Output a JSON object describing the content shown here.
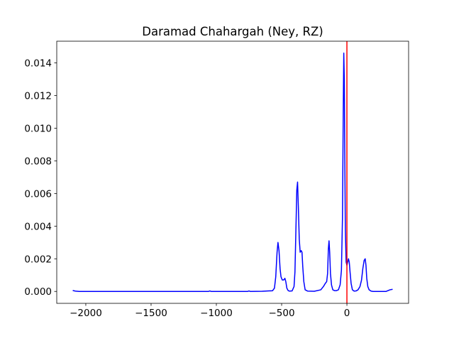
{
  "chart_data": {
    "type": "line",
    "title": "Daramad Chahargah (Ney, RZ)",
    "x": [
      -2100,
      -2080,
      -2050,
      -1500,
      -1060,
      -1050,
      -1040,
      -760,
      -750,
      -740,
      -650,
      -600,
      -570,
      -555,
      -545,
      -535,
      -528,
      -520,
      -512,
      -505,
      -495,
      -485,
      -475,
      -468,
      -460,
      -450,
      -440,
      -420,
      -405,
      -398,
      -390,
      -384,
      -378,
      -372,
      -365,
      -358,
      -350,
      -344,
      -338,
      -330,
      -320,
      -300,
      -250,
      -200,
      -180,
      -165,
      -155,
      -148,
      -142,
      -137,
      -132,
      -126,
      -118,
      -108,
      -95,
      -80,
      -65,
      -52,
      -42,
      -34,
      -28,
      -24,
      -20,
      -16,
      -12,
      -6,
      0,
      6,
      12,
      18,
      24,
      32,
      42,
      55,
      70,
      85,
      100,
      112,
      122,
      132,
      140,
      146,
      152,
      160,
      170,
      185,
      200,
      250,
      300,
      330,
      350
    ],
    "values": [
      6e-05,
      2e-05,
      0.0,
      0.0,
      0.0,
      3e-05,
      0.0,
      0.0,
      3e-05,
      0.0,
      1e-05,
      3e-05,
      4e-05,
      0.0002,
      0.0009,
      0.0024,
      0.003,
      0.0025,
      0.0014,
      0.0009,
      0.0007,
      0.0007,
      0.0008,
      0.0006,
      0.0002,
      5e-05,
      2e-05,
      3e-05,
      0.0003,
      0.0012,
      0.004,
      0.0062,
      0.0067,
      0.0052,
      0.0032,
      0.0024,
      0.0025,
      0.0024,
      0.0015,
      0.0006,
      0.0001,
      2e-05,
      1e-05,
      0.0001,
      0.0003,
      0.0005,
      0.0006,
      0.0011,
      0.0026,
      0.0031,
      0.0024,
      0.0011,
      0.0004,
      0.0001,
      5e-05,
      5e-05,
      0.0001,
      0.0004,
      0.0013,
      0.0045,
      0.011,
      0.0146,
      0.013,
      0.008,
      0.0038,
      0.0018,
      0.0016,
      0.0018,
      0.002,
      0.0018,
      0.0012,
      0.0005,
      0.0001,
      2e-05,
      3e-05,
      0.0001,
      0.0003,
      0.0007,
      0.0014,
      0.0019,
      0.002,
      0.0016,
      0.0008,
      0.0003,
      0.0001,
      2e-05,
      0.0,
      0.0,
      0.0,
      0.0001,
      0.00013
    ],
    "color": "#0000ff",
    "vline": {
      "x": 0,
      "color": "#ff0000"
    },
    "xlim": [
      -2222.5,
      472.5
    ],
    "ylim": [
      -0.00073,
      0.01533
    ],
    "xticks": [
      {
        "value": -2000,
        "label": "−2000"
      },
      {
        "value": -1500,
        "label": "−1500"
      },
      {
        "value": -1000,
        "label": "−1000"
      },
      {
        "value": -500,
        "label": "−500"
      },
      0
    ],
    "yticks": [
      {
        "value": 0,
        "label": "0.000"
      },
      {
        "value": 0.002,
        "label": "0.002"
      },
      {
        "value": 0.004,
        "label": "0.004"
      },
      {
        "value": 0.006,
        "label": "0.006"
      },
      {
        "value": 0.008,
        "label": "0.008"
      },
      {
        "value": 0.01,
        "label": "0.010"
      },
      {
        "value": 0.012,
        "label": "0.012"
      },
      {
        "value": 0.014,
        "label": "0.014"
      }
    ]
  }
}
